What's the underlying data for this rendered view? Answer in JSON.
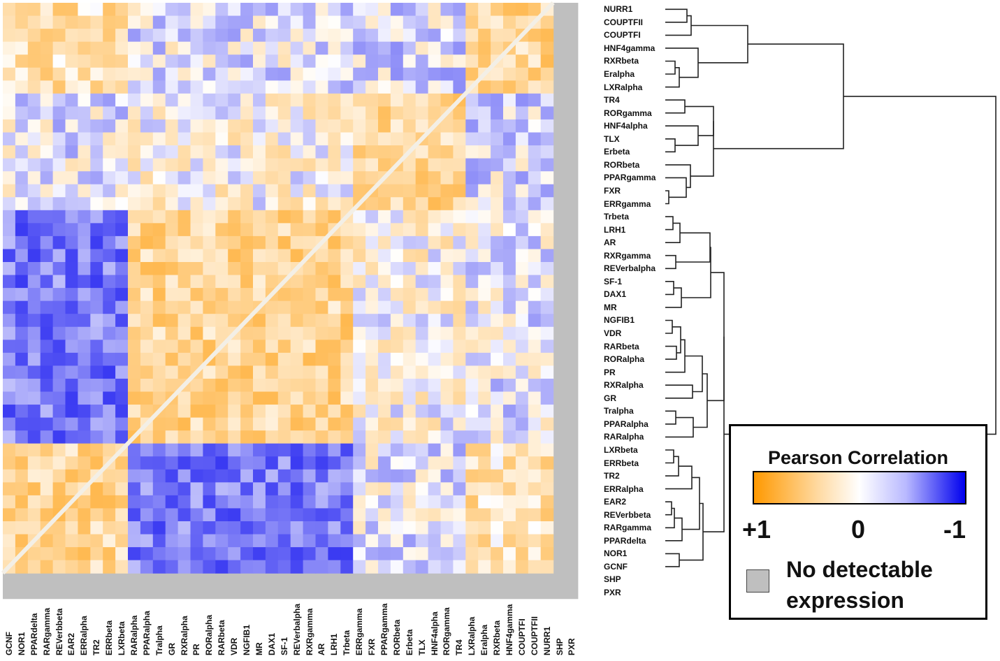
{
  "chart_data": {
    "type": "heatmap",
    "title": "Pearson Correlation",
    "value_range": [
      -1,
      1
    ],
    "colorscale": {
      "positive": "#ff9900",
      "zero": "#ffffff",
      "negative": "#0000ee",
      "na": "#bfbfbf"
    },
    "legend": {
      "title": "Pearson Correlation",
      "tick_labels": [
        "+1",
        "0",
        "-1"
      ],
      "na_label": "No detectable expression"
    },
    "rows": [
      "NURR1",
      "COUPTFII",
      "COUPTFI",
      "HNF4gamma",
      "RXRbeta",
      "Eralpha",
      "LXRalpha",
      "TR4",
      "RORgamma",
      "HNF4alpha",
      "TLX",
      "Erbeta",
      "RORbeta",
      "PPARgamma",
      "FXR",
      "ERRgamma",
      "Trbeta",
      "LRH1",
      "AR",
      "RXRgamma",
      "REVerbalpha",
      "SF-1",
      "DAX1",
      "MR",
      "NGFIB1",
      "VDR",
      "RARbeta",
      "RORalpha",
      "PR",
      "RXRalpha",
      "GR",
      "Tralpha",
      "PPARalpha",
      "RARalpha",
      "LXRbeta",
      "ERRbeta",
      "TR2",
      "ERRalpha",
      "EAR2",
      "REVerbbeta",
      "RARgamma",
      "PPARdelta",
      "NOR1",
      "GCNF",
      "SHP",
      "PXR"
    ],
    "columns": [
      "GCNF",
      "NOR1",
      "PPARdelta",
      "RARgamma",
      "REVerbbeta",
      "EAR2",
      "ERRalpha",
      "TR2",
      "ERRbeta",
      "LXRbeta",
      "RARalpha",
      "PPARalpha",
      "Tralpha",
      "GR",
      "RXRalpha",
      "PR",
      "RORalpha",
      "RARbeta",
      "VDR",
      "NGFIB1",
      "MR",
      "DAX1",
      "SF-1",
      "REVerbalpha",
      "RXRgamma",
      "AR",
      "LRH1",
      "Trbeta",
      "ERRgamma",
      "FXR",
      "PPARgamma",
      "RORbeta",
      "Erbeta",
      "TLX",
      "HNF4alpha",
      "RORgamma",
      "TR4",
      "LXRalpha",
      "Eralpha",
      "RXRbeta",
      "HNF4gamma",
      "COUPTFI",
      "COUPTFII",
      "NURR1",
      "SHP",
      "PXR"
    ],
    "clusters": [
      [
        "NURR1",
        "COUPTFII",
        "COUPTFI",
        "HNF4gamma",
        "RXRbeta",
        "Eralpha",
        "LXRalpha"
      ],
      [
        "TR4",
        "RORgamma",
        "HNF4alpha",
        "TLX",
        "Erbeta",
        "RORbeta",
        "PPARgamma",
        "FXR",
        "ERRgamma"
      ],
      [
        "Trbeta",
        "LRH1",
        "AR",
        "RXRgamma",
        "REVerbalpha",
        "SF-1",
        "DAX1",
        "MR",
        "NGFIB1",
        "VDR",
        "RARbeta",
        "RORalpha",
        "PR",
        "RXRalpha",
        "GR",
        "Tralpha",
        "PPARalpha",
        "RARalpha"
      ],
      [
        "LXRbeta",
        "ERRbeta",
        "TR2",
        "ERRalpha",
        "EAR2",
        "REVerbbeta",
        "RARgamma",
        "PPARdelta",
        "NOR1",
        "GCNF"
      ]
    ],
    "no_expression": [
      "SHP",
      "PXR"
    ]
  }
}
